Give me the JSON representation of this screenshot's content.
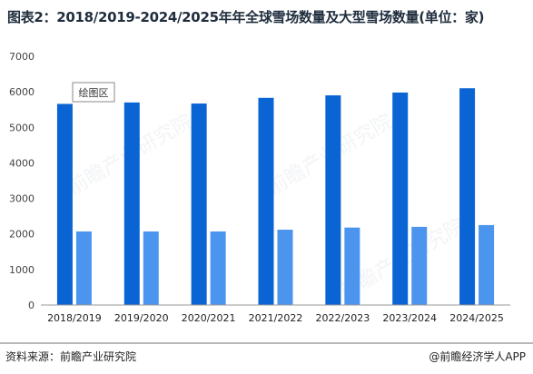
{
  "title": "图表2：2018/2019-2024/2025年年全球雪场数量及大型雪场数量(单位：家)",
  "source": "资料来源：前瞻产业研究院",
  "credit": "@前瞻经济学人APP",
  "plot_area_label": "绘图区",
  "chart_data": {
    "type": "bar",
    "categories": [
      "2018/2019",
      "2019/2020",
      "2020/2021",
      "2021/2022",
      "2022/2023",
      "2023/2024",
      "2024/2025"
    ],
    "series": [
      {
        "values": [
          5660,
          5700,
          5670,
          5830,
          5900,
          5980,
          6100
        ],
        "color": "#0a64d4"
      },
      {
        "values": [
          2070,
          2070,
          2070,
          2120,
          2180,
          2200,
          2250
        ],
        "color": "#4b95ee"
      }
    ],
    "ylim": [
      0,
      7000
    ],
    "yticks": [
      "0",
      "1000",
      "2000",
      "3000",
      "4000",
      "5000",
      "6000",
      "7000"
    ],
    "grid": false,
    "legend": "none"
  }
}
